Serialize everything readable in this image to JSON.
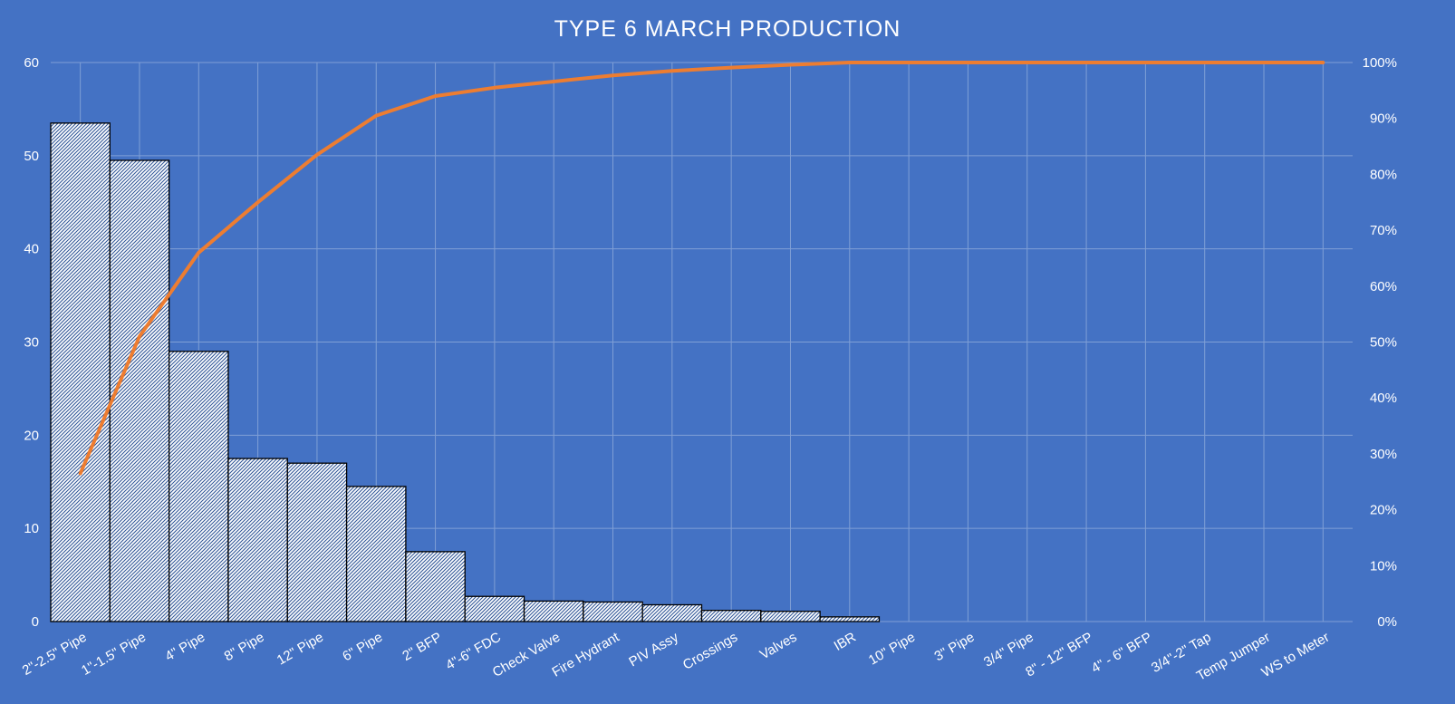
{
  "chart_data": {
    "type": "bar",
    "title": "TYPE 6 MARCH PRODUCTION",
    "categories": [
      "2\"-2.5\" Pipe",
      "1\"-1.5\" Pipe",
      "4\" Pipe",
      "8\" Pipe",
      "12\" Pipe",
      "6\" Pipe",
      "2\" BFP",
      "4\"-6\" FDC",
      "Check Valve",
      "Fire Hydrant",
      "PIV Assy",
      "Crossings",
      "Valves",
      "IBR",
      "10\" Pipe",
      "3\" Pipe",
      "3/4\" Pipe",
      "8\" - 12\" BFP",
      "4\" - 6\" BFP",
      "3/4\"-2\" Tap",
      "Temp Jumper",
      "WS to Meter"
    ],
    "series": [
      {
        "type": "bar",
        "axis": "left",
        "values": [
          53.5,
          49.5,
          29,
          17.5,
          17,
          14.5,
          7.5,
          2.7,
          2.2,
          2.1,
          1.8,
          1.2,
          1.1,
          0.5,
          0,
          0,
          0,
          0,
          0,
          0,
          0,
          0
        ]
      },
      {
        "type": "line",
        "axis": "right",
        "values": [
          0.265,
          0.51,
          0.66,
          0.75,
          0.835,
          0.905,
          0.94,
          0.955,
          0.966,
          0.977,
          0.985,
          0.991,
          0.996,
          1.0,
          1.0,
          1.0,
          1.0,
          1.0,
          1.0,
          1.0,
          1.0,
          1.0
        ]
      }
    ],
    "y_left": {
      "min": 0,
      "max": 60,
      "ticks": [
        "0",
        "10",
        "20",
        "30",
        "40",
        "50",
        "60"
      ]
    },
    "y_right": {
      "min": 0,
      "max": 1,
      "ticks": [
        "0%",
        "10%",
        "20%",
        "30%",
        "40%",
        "50%",
        "60%",
        "70%",
        "80%",
        "90%",
        "100%"
      ]
    },
    "grid": true,
    "legend": "none",
    "colors": {
      "background": "#4472C4",
      "bar_fill": "#ffffff",
      "bar_hatch": "#2F5597",
      "bar_stroke": "#000000",
      "line": "#ED7D31",
      "gridline": "#7F9FD6",
      "text": "#ffffff"
    }
  }
}
